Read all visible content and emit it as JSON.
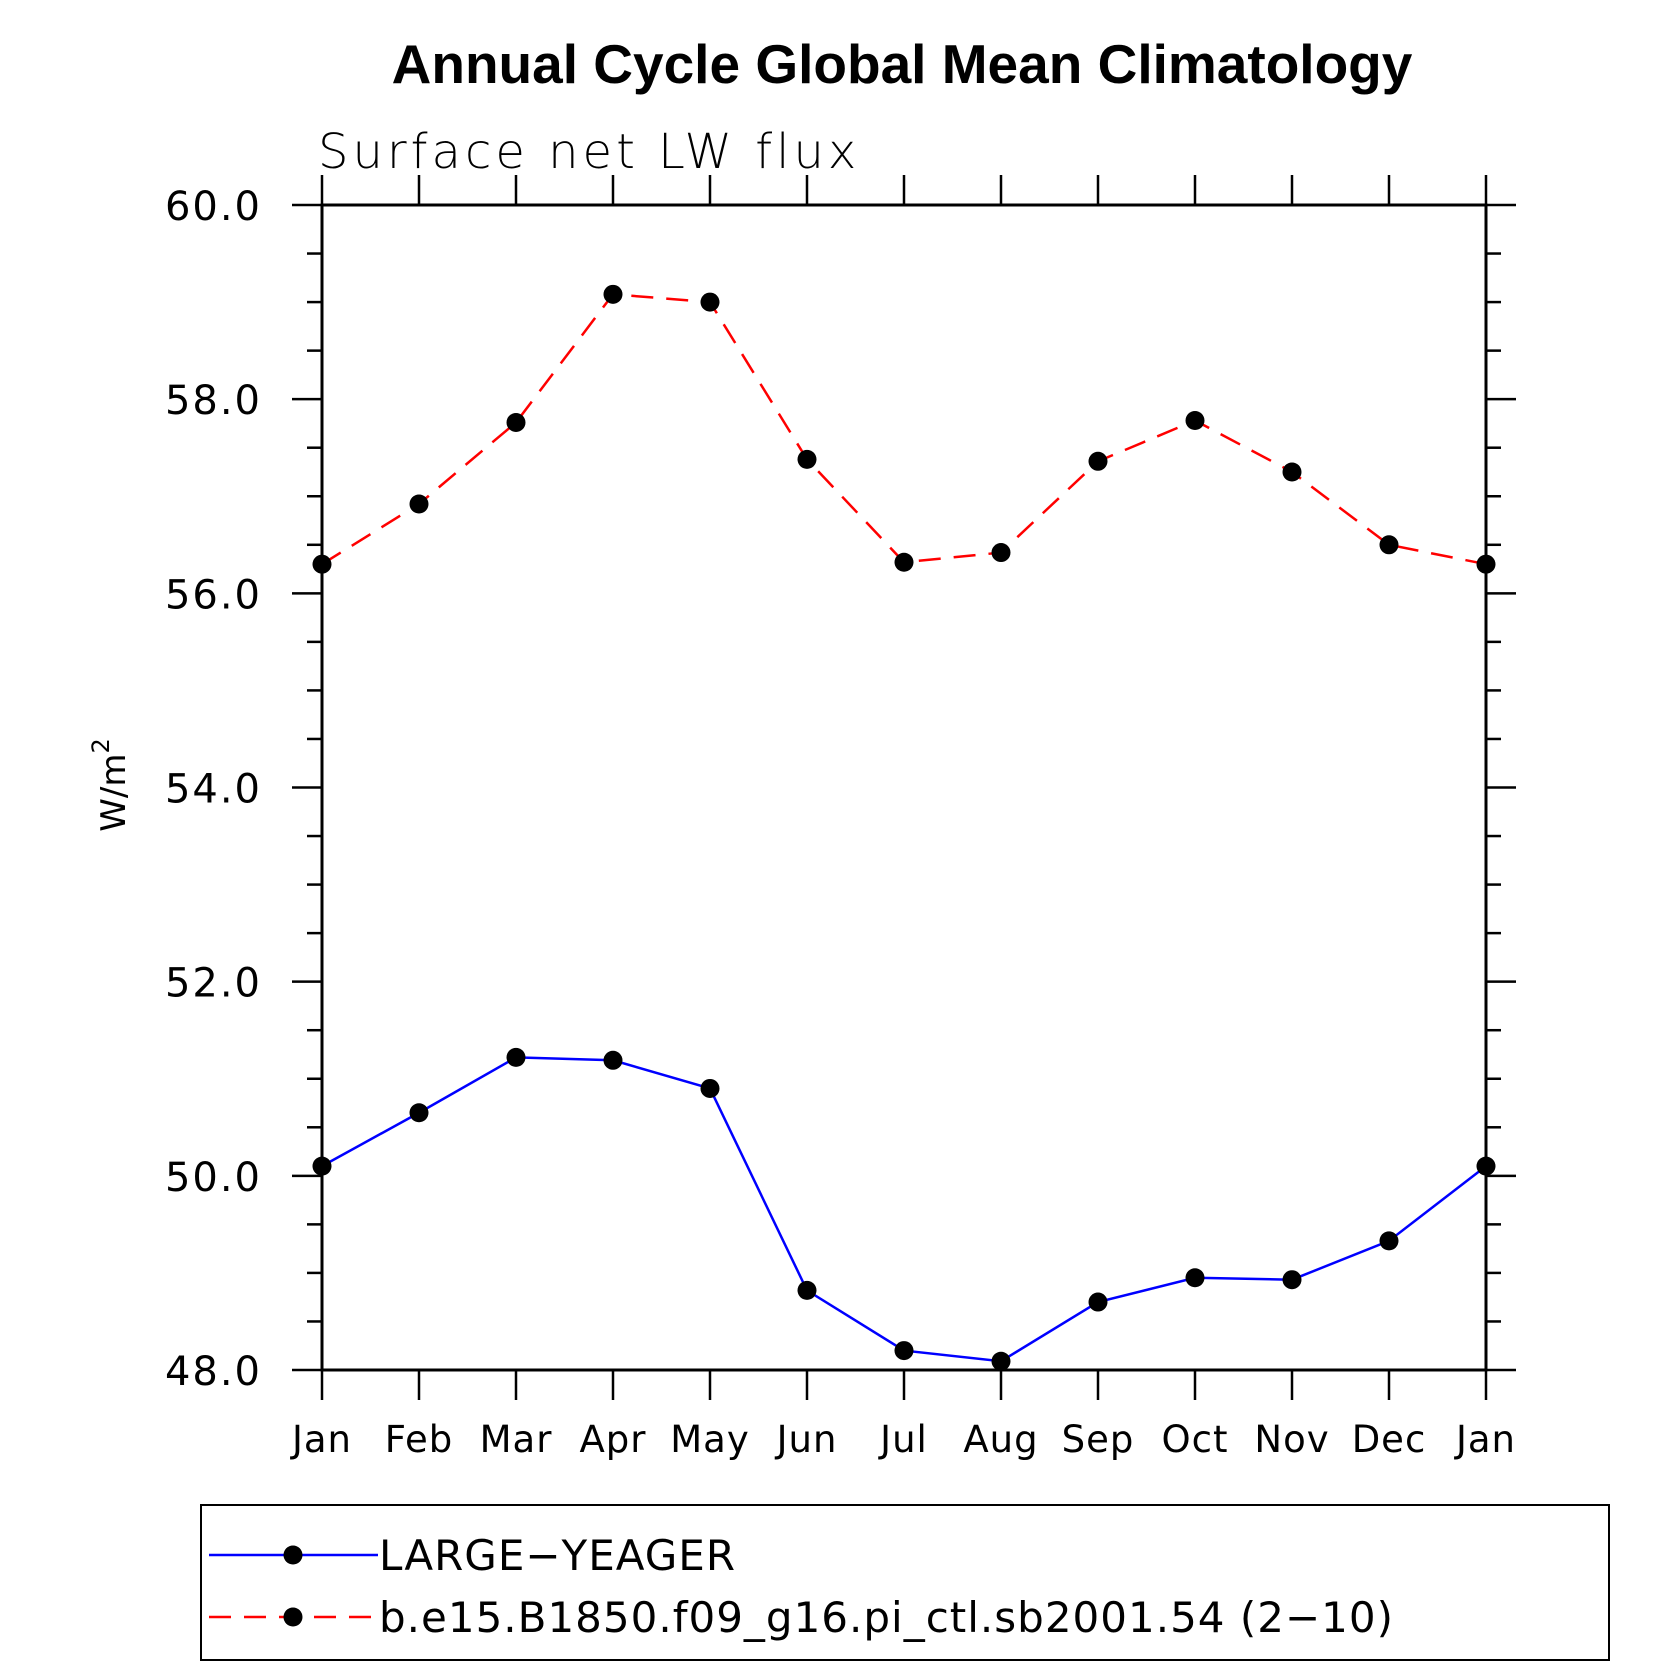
{
  "chart_data": {
    "type": "line",
    "title": "Annual Cycle Global Mean Climatology",
    "subtitle": "Surface net LW flux",
    "ylabel": "W/m",
    "ylabel_sup": "2",
    "ylim": [
      48.0,
      60.0
    ],
    "yticks": [
      "48.0",
      "50.0",
      "52.0",
      "54.0",
      "56.0",
      "58.0",
      "60.0"
    ],
    "categories": [
      "Jan",
      "Feb",
      "Mar",
      "Apr",
      "May",
      "Jun",
      "Jul",
      "Aug",
      "Sep",
      "Oct",
      "Nov",
      "Dec",
      "Jan"
    ],
    "grid": false,
    "legend_position": "bottom",
    "series": [
      {
        "name": "LARGE−YEAGER",
        "color": "#0000ff",
        "dash": "solid",
        "marker": "filled-circle",
        "values": [
          50.1,
          50.65,
          51.22,
          51.19,
          50.9,
          48.82,
          48.2,
          48.09,
          48.7,
          48.95,
          48.93,
          49.33,
          50.1
        ]
      },
      {
        "name": "b.e15.B1850.f09_g16.pi_ctl.sb2001.54 (2−10)",
        "color": "#ff0000",
        "dash": "dashed",
        "marker": "filled-circle",
        "values": [
          56.3,
          56.92,
          57.76,
          59.08,
          59.0,
          57.38,
          56.32,
          56.42,
          57.36,
          57.78,
          57.25,
          56.5,
          56.3
        ]
      }
    ]
  }
}
